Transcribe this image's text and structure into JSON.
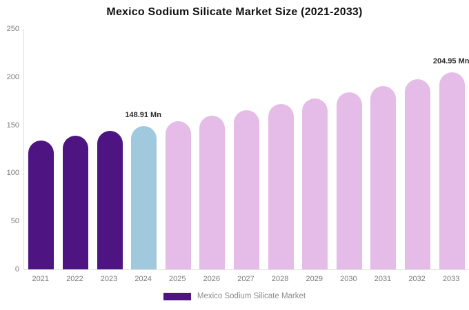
{
  "chart_data": {
    "type": "bar",
    "title": "Mexico Sodium Silicate Market Size (2021-2033)",
    "categories": [
      "2021",
      "2022",
      "2023",
      "2024",
      "2025",
      "2026",
      "2027",
      "2028",
      "2029",
      "2030",
      "2031",
      "2032",
      "2033"
    ],
    "series": [
      {
        "name": "Mexico Sodium Silicate Market",
        "values": [
          133.9,
          138.7,
          143.7,
          148.91,
          154.3,
          159.9,
          165.6,
          171.6,
          177.8,
          184.2,
          190.9,
          197.8,
          204.95
        ]
      }
    ],
    "bar_roles": [
      "historical",
      "historical",
      "historical",
      "base_year",
      "forecast",
      "forecast",
      "forecast",
      "forecast",
      "forecast",
      "forecast",
      "forecast",
      "forecast",
      "forecast"
    ],
    "annotations": [
      {
        "category": "2024",
        "text": "148.91 Mn"
      },
      {
        "category": "2033",
        "text": "204.95 Mn"
      }
    ],
    "xlabel": "",
    "ylabel": "",
    "ylim": [
      0,
      250
    ],
    "yticks": [
      0,
      50,
      100,
      150,
      200,
      250
    ],
    "grid": false,
    "legend_position": "bottom",
    "colors": {
      "historical": "#4e1482",
      "base_year": "#a1c9de",
      "forecast": "#e5bbe7",
      "legend_swatch": "#4e1482",
      "axis_line": "#dddddd",
      "tick_label": "#7a7a7a",
      "annotation_text": "#2b2b2b",
      "title_text": "#111111",
      "legend_text": "#8c8c8c"
    }
  },
  "legend": {
    "label": "Mexico Sodium Silicate Market"
  }
}
